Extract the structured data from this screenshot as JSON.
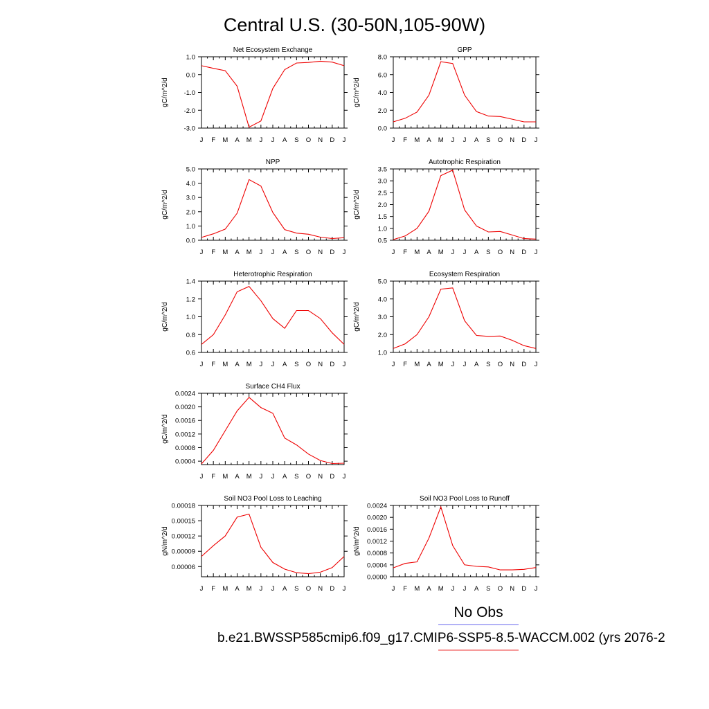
{
  "title": "Central U.S. (30-50N,105-90W)",
  "legend": {
    "obs_label": "No Obs",
    "obs_color": "#6666ee",
    "case_label": "b.e21.BWSSP585cmip6.f09_g17.CMIP6-SSP5-8.5-WACCM.002 (yrs 2076-2",
    "case_color": "#ee3333"
  },
  "line_color": "#ee0000",
  "chart_data": [
    {
      "type": "line",
      "title": "Net Ecosystem Exchange",
      "ylabel": "gC/m^2/d",
      "categories": [
        "J",
        "F",
        "M",
        "A",
        "M",
        "J",
        "J",
        "A",
        "S",
        "O",
        "N",
        "D",
        "J"
      ],
      "values": [
        0.5,
        0.35,
        0.22,
        -0.65,
        -2.95,
        -2.6,
        -0.78,
        0.28,
        0.65,
        0.68,
        0.75,
        0.7,
        0.5
      ],
      "ylim": [
        -3.0,
        1.0
      ],
      "yticks": [
        "-3.0",
        "-2.0",
        "-1.0",
        "0.0",
        "1.0"
      ],
      "ytick_values": [
        -3.0,
        -2.0,
        -1.0,
        0.0,
        1.0
      ]
    },
    {
      "type": "line",
      "title": "GPP",
      "ylabel": "gC/m^2/d",
      "categories": [
        "J",
        "F",
        "M",
        "A",
        "M",
        "J",
        "J",
        "A",
        "S",
        "O",
        "N",
        "D",
        "J"
      ],
      "values": [
        0.7,
        1.1,
        1.8,
        3.7,
        7.45,
        7.25,
        3.7,
        1.85,
        1.35,
        1.3,
        1.0,
        0.7,
        0.7
      ],
      "ylim": [
        0.0,
        8.0
      ],
      "yticks": [
        "0.0",
        "2.0",
        "4.0",
        "6.0",
        "8.0"
      ],
      "ytick_values": [
        0.0,
        2.0,
        4.0,
        6.0,
        8.0
      ]
    },
    {
      "type": "line",
      "title": "NPP",
      "ylabel": "gC/m^2/d",
      "categories": [
        "J",
        "F",
        "M",
        "A",
        "M",
        "J",
        "J",
        "A",
        "S",
        "O",
        "N",
        "D",
        "J"
      ],
      "values": [
        0.2,
        0.45,
        0.78,
        1.9,
        4.25,
        3.8,
        1.95,
        0.75,
        0.5,
        0.42,
        0.22,
        0.12,
        0.18
      ],
      "ylim": [
        0.0,
        5.0
      ],
      "yticks": [
        "0.0",
        "1.0",
        "2.0",
        "3.0",
        "4.0",
        "5.0"
      ],
      "ytick_values": [
        0.0,
        1.0,
        2.0,
        3.0,
        4.0,
        5.0
      ]
    },
    {
      "type": "line",
      "title": "Autotrophic Respiration",
      "ylabel": "gC/m^2/d",
      "categories": [
        "J",
        "F",
        "M",
        "A",
        "M",
        "J",
        "J",
        "A",
        "S",
        "O",
        "N",
        "D",
        "J"
      ],
      "values": [
        0.53,
        0.68,
        1.0,
        1.72,
        3.22,
        3.45,
        1.78,
        1.1,
        0.85,
        0.87,
        0.72,
        0.57,
        0.55
      ],
      "ylim": [
        0.5,
        3.5
      ],
      "yticks": [
        "0.5",
        "1.0",
        "1.5",
        "2.0",
        "2.5",
        "3.0",
        "3.5"
      ],
      "ytick_values": [
        0.5,
        1.0,
        1.5,
        2.0,
        2.5,
        3.0,
        3.5
      ]
    },
    {
      "type": "line",
      "title": "Heterotrophic Respiration",
      "ylabel": "gC/m^2/d",
      "categories": [
        "J",
        "F",
        "M",
        "A",
        "M",
        "J",
        "J",
        "A",
        "S",
        "O",
        "N",
        "D",
        "J"
      ],
      "values": [
        0.69,
        0.8,
        1.02,
        1.28,
        1.34,
        1.18,
        0.98,
        0.87,
        1.07,
        1.07,
        0.98,
        0.82,
        0.69
      ],
      "ylim": [
        0.6,
        1.4
      ],
      "yticks": [
        "0.6",
        "0.8",
        "1.0",
        "1.2",
        "1.4"
      ],
      "ytick_values": [
        0.6,
        0.8,
        1.0,
        1.2,
        1.4
      ]
    },
    {
      "type": "line",
      "title": "Ecosystem Respiration",
      "ylabel": "gC/m^2/d",
      "categories": [
        "J",
        "F",
        "M",
        "A",
        "M",
        "J",
        "J",
        "A",
        "S",
        "O",
        "N",
        "D",
        "J"
      ],
      "values": [
        1.22,
        1.48,
        2.0,
        3.0,
        4.55,
        4.62,
        2.78,
        1.95,
        1.9,
        1.92,
        1.68,
        1.38,
        1.22
      ],
      "ylim": [
        1.0,
        5.0
      ],
      "yticks": [
        "1.0",
        "2.0",
        "3.0",
        "4.0",
        "5.0"
      ],
      "ytick_values": [
        1.0,
        2.0,
        3.0,
        4.0,
        5.0
      ]
    },
    {
      "type": "line",
      "title": "Surface CH4 Flux",
      "ylabel": "gC/m^2/d",
      "categories": [
        "J",
        "F",
        "M",
        "A",
        "M",
        "J",
        "J",
        "A",
        "S",
        "O",
        "N",
        "D",
        "J"
      ],
      "values": [
        0.00032,
        0.00072,
        0.0013,
        0.00188,
        0.00228,
        0.00198,
        0.00181,
        0.00108,
        0.00088,
        0.00061,
        0.00042,
        0.00033,
        0.00034
      ],
      "ylim": [
        0.0003,
        0.0024
      ],
      "yticks": [
        "0.0004",
        "0.0008",
        "0.0012",
        "0.0016",
        "0.0020",
        "0.0024"
      ],
      "ytick_values": [
        0.0004,
        0.0008,
        0.0012,
        0.0016,
        0.002,
        0.0024
      ]
    },
    {
      "type": "line",
      "title": "Soil NO3 Pool Loss to Leaching",
      "ylabel": "gN/m^2/d",
      "categories": [
        "J",
        "F",
        "M",
        "A",
        "M",
        "J",
        "J",
        "A",
        "S",
        "O",
        "N",
        "D",
        "J"
      ],
      "values": [
        8e-05,
        0.000101,
        0.00012,
        0.000157,
        0.000163,
        9.8e-05,
        6.8e-05,
        5.5e-05,
        4.8e-05,
        4.6e-05,
        4.9e-05,
        5.8e-05,
        8e-05
      ],
      "ylim": [
        4e-05,
        0.00018
      ],
      "yticks": [
        "0.00006",
        "0.00009",
        "0.00012",
        "0.00015",
        "0.00018"
      ],
      "ytick_values": [
        6e-05,
        9e-05,
        0.00012,
        0.00015,
        0.00018
      ]
    },
    {
      "type": "line",
      "title": "Soil NO3 Pool Loss to Runoff",
      "ylabel": "gN/m^2/d",
      "categories": [
        "J",
        "F",
        "M",
        "A",
        "M",
        "J",
        "J",
        "A",
        "S",
        "O",
        "N",
        "D",
        "J"
      ],
      "values": [
        0.0003,
        0.00045,
        0.0005,
        0.0013,
        0.00235,
        0.00105,
        0.0004,
        0.00035,
        0.00033,
        0.00023,
        0.00023,
        0.00025,
        0.00031
      ],
      "ylim": [
        0.0,
        0.0024
      ],
      "yticks": [
        "0.0000",
        "0.0004",
        "0.0008",
        "0.0012",
        "0.0016",
        "0.0020",
        "0.0024"
      ],
      "ytick_values": [
        0.0,
        0.0004,
        0.0008,
        0.0012,
        0.0016,
        0.002,
        0.0024
      ]
    }
  ]
}
